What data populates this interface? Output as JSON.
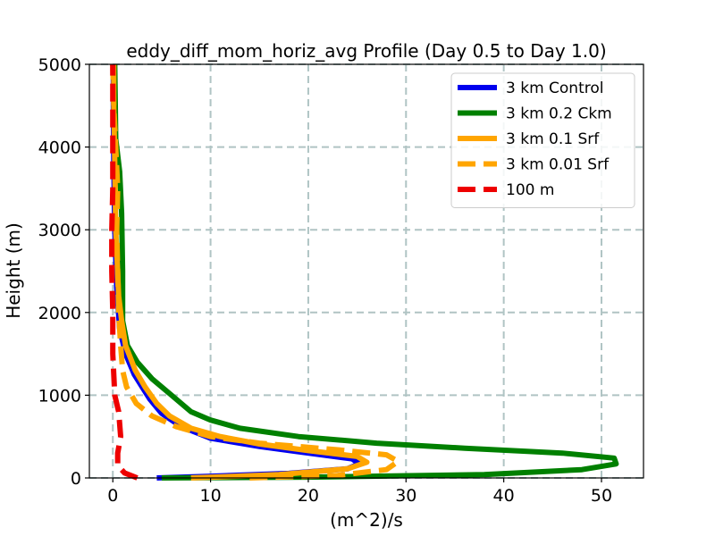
{
  "chart_data": {
    "type": "line",
    "title": "eddy_diff_mom_horiz_avg Profile (Day 0.5 to Day 1.0)",
    "xlabel": "(m^2)/s",
    "ylabel": "Height (m)",
    "xlim": [
      -2.4,
      54.3
    ],
    "ylim": [
      0,
      5000
    ],
    "xticks": [
      0,
      10,
      20,
      30,
      40,
      50
    ],
    "yticks": [
      0,
      1000,
      2000,
      3000,
      4000,
      5000
    ],
    "grid": true,
    "legend_position": "top-right",
    "series": [
      {
        "name": "3 km Control",
        "color": "#0000ee",
        "style": "solid",
        "points": [
          [
            4.5,
            0
          ],
          [
            10,
            20
          ],
          [
            18,
            55
          ],
          [
            24,
            110
          ],
          [
            25.2,
            170
          ],
          [
            24.5,
            230
          ],
          [
            20,
            300
          ],
          [
            15,
            380
          ],
          [
            10,
            480
          ],
          [
            7,
            620
          ],
          [
            5,
            780
          ],
          [
            3.8,
            950
          ],
          [
            3,
            1100
          ],
          [
            2.2,
            1250
          ],
          [
            1.3,
            1500
          ],
          [
            0.7,
            1800
          ],
          [
            0.4,
            2300
          ],
          [
            0.2,
            3000
          ],
          [
            0.1,
            3800
          ],
          [
            0.05,
            4500
          ],
          [
            0.05,
            5000
          ]
        ]
      },
      {
        "name": "3 km 0.2 Ckm",
        "color": "#008000",
        "style": "solid",
        "points": [
          [
            5,
            0
          ],
          [
            20,
            10
          ],
          [
            38,
            40
          ],
          [
            48,
            100
          ],
          [
            51.5,
            170
          ],
          [
            51.3,
            240
          ],
          [
            46,
            300
          ],
          [
            36,
            360
          ],
          [
            27,
            420
          ],
          [
            19,
            500
          ],
          [
            13,
            600
          ],
          [
            10,
            700
          ],
          [
            8,
            800
          ],
          [
            6,
            1000
          ],
          [
            4,
            1200
          ],
          [
            2.5,
            1400
          ],
          [
            1.5,
            1600
          ],
          [
            1,
            1900
          ],
          [
            1,
            2500
          ],
          [
            0.9,
            3200
          ],
          [
            0.7,
            3700
          ],
          [
            0.3,
            4100
          ],
          [
            0.2,
            5000
          ]
        ]
      },
      {
        "name": "3 km 0.1 Srf",
        "color": "#ffa500",
        "style": "solid",
        "points": [
          [
            8,
            0
          ],
          [
            17,
            40
          ],
          [
            24,
            110
          ],
          [
            26,
            190
          ],
          [
            25,
            260
          ],
          [
            20,
            330
          ],
          [
            15,
            410
          ],
          [
            11,
            500
          ],
          [
            8,
            600
          ],
          [
            5.8,
            750
          ],
          [
            4.5,
            900
          ],
          [
            3.3,
            1100
          ],
          [
            2.3,
            1300
          ],
          [
            1.3,
            1600
          ],
          [
            0.9,
            1900
          ],
          [
            0.6,
            2200
          ],
          [
            0.3,
            3000
          ],
          [
            0.2,
            3800
          ],
          [
            0.1,
            4500
          ],
          [
            0.1,
            5000
          ]
        ]
      },
      {
        "name": "3 km 0.01 Srf",
        "color": "#ffa500",
        "style": "dashed",
        "points": [
          [
            14,
            0
          ],
          [
            23,
            30
          ],
          [
            28,
            100
          ],
          [
            29.2,
            200
          ],
          [
            28,
            280
          ],
          [
            23,
            340
          ],
          [
            15,
            420
          ],
          [
            10,
            500
          ],
          [
            6.5,
            620
          ],
          [
            4,
            750
          ],
          [
            2.4,
            900
          ],
          [
            1.4,
            1100
          ],
          [
            1,
            1300
          ],
          [
            0.8,
            1600
          ],
          [
            0.6,
            2000
          ],
          [
            0.5,
            2500
          ],
          [
            0.4,
            3000
          ],
          [
            0.5,
            3500
          ],
          [
            0.3,
            4000
          ],
          [
            0.1,
            4500
          ],
          [
            0,
            5000
          ]
        ]
      },
      {
        "name": "100 m",
        "color": "#ee0000",
        "style": "dashed",
        "points": [
          [
            2.5,
            0
          ],
          [
            1.2,
            60
          ],
          [
            0.5,
            150
          ],
          [
            0.5,
            300
          ],
          [
            0.8,
            500
          ],
          [
            0.6,
            800
          ],
          [
            0.2,
            1000
          ],
          [
            0,
            1500
          ],
          [
            0,
            2000
          ],
          [
            -0.1,
            2500
          ],
          [
            -0.1,
            3000
          ],
          [
            0,
            3500
          ],
          [
            0,
            4000
          ],
          [
            0,
            4500
          ],
          [
            0,
            5000
          ]
        ]
      }
    ]
  }
}
